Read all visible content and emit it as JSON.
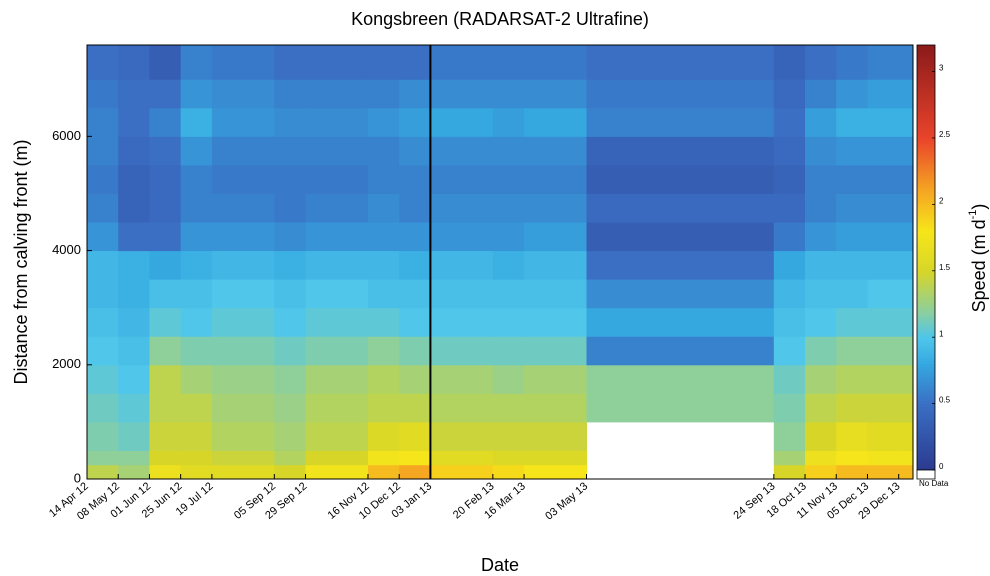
{
  "chart_data": {
    "type": "heatmap",
    "title": "Kongsbreen (RADARSAT-2 Ultrafine)",
    "x_label": "Date",
    "y_label": "Distance from calving front (m)",
    "colorbar_label": [
      "Speed (m d",
      "-1",
      ")"
    ],
    "no_data_label": "No Data",
    "x": [
      "14 Apr 12",
      "08 May 12",
      "01 Jun 12",
      "25 Jun 12",
      "19 Jul 12",
      "05 Sep 12",
      "29 Sep 12",
      "16 Nov 12",
      "10 Dec 12",
      "03 Jan 13",
      "20 Feb 13",
      "16 Mar 13",
      "03 May 13",
      "24 Sep 13",
      "18 Oct 13",
      "11 Nov 13",
      "05 Dec 13",
      "29 Dec 13"
    ],
    "xlim": [
      "14 Apr 12",
      "09 Jan 14"
    ],
    "vline": "03 Jan 13",
    "y_bins": [
      0,
      250,
      500,
      1000,
      1500,
      2000,
      2500,
      3000,
      3500,
      4000,
      4500,
      5000,
      5500,
      6000,
      6500,
      7000,
      7600
    ],
    "ylim": [
      0,
      7600
    ],
    "yticks": [
      0,
      2000,
      4000,
      6000
    ],
    "clim": [
      0,
      3.2
    ],
    "cticks": [
      0,
      0.5,
      1,
      1.5,
      2,
      2.5,
      3
    ],
    "colormap": [
      [
        0,
        "#2b3a8f"
      ],
      [
        0.5,
        "#3a6fc4"
      ],
      [
        0.8,
        "#35a8e0"
      ],
      [
        1.0,
        "#4fc6ea"
      ],
      [
        1.2,
        "#8ecf9a"
      ],
      [
        1.5,
        "#d7d628"
      ],
      [
        1.8,
        "#f6e51a"
      ],
      [
        2.1,
        "#f6a722"
      ],
      [
        2.5,
        "#e9442b"
      ],
      [
        3.2,
        "#8b1a1a"
      ]
    ],
    "values": [
      [
        1.4,
        1.2,
        1.15,
        1.1,
        1.05,
        1.0,
        0.95,
        0.9,
        0.9,
        0.7,
        0.6,
        0.55,
        0.6,
        0.6,
        0.55,
        0.5
      ],
      [
        1.3,
        1.2,
        1.1,
        1.05,
        1.0,
        0.95,
        0.9,
        0.85,
        0.85,
        0.5,
        0.4,
        0.4,
        0.45,
        0.5,
        0.5,
        0.45
      ],
      [
        1.7,
        1.5,
        1.45,
        1.4,
        1.4,
        1.2,
        1.05,
        0.95,
        0.8,
        0.5,
        0.45,
        0.45,
        0.5,
        0.6,
        0.5,
        0.35
      ],
      [
        1.6,
        1.5,
        1.45,
        1.4,
        1.3,
        1.15,
        1.0,
        0.95,
        0.85,
        0.7,
        0.6,
        0.6,
        0.7,
        0.85,
        0.7,
        0.6
      ],
      [
        1.6,
        1.45,
        1.35,
        1.3,
        1.25,
        1.15,
        1.05,
        1.0,
        0.9,
        0.7,
        0.6,
        0.55,
        0.6,
        0.7,
        0.65,
        0.55
      ],
      [
        1.5,
        1.35,
        1.3,
        1.25,
        1.2,
        1.1,
        1.0,
        0.95,
        0.85,
        0.65,
        0.55,
        0.55,
        0.6,
        0.65,
        0.6,
        0.5
      ],
      [
        1.75,
        1.5,
        1.4,
        1.35,
        1.3,
        1.15,
        1.05,
        1.0,
        0.9,
        0.7,
        0.6,
        0.55,
        0.6,
        0.65,
        0.6,
        0.5
      ],
      [
        2.0,
        1.75,
        1.55,
        1.4,
        1.35,
        1.2,
        1.05,
        0.95,
        0.9,
        0.7,
        0.65,
        0.6,
        0.6,
        0.7,
        0.6,
        0.5
      ],
      [
        2.1,
        1.8,
        1.6,
        1.4,
        1.3,
        1.15,
        1.0,
        0.95,
        0.85,
        0.7,
        0.6,
        0.6,
        0.65,
        0.75,
        0.65,
        0.5
      ],
      [
        1.9,
        1.6,
        1.45,
        1.35,
        1.3,
        1.1,
        1.0,
        0.95,
        0.9,
        0.7,
        0.65,
        0.6,
        0.65,
        0.8,
        0.65,
        0.55
      ],
      [
        1.85,
        1.55,
        1.45,
        1.35,
        1.25,
        1.1,
        1.0,
        0.95,
        0.85,
        0.7,
        0.65,
        0.6,
        0.65,
        0.75,
        0.65,
        0.55
      ],
      [
        1.8,
        1.55,
        1.45,
        1.35,
        1.3,
        1.1,
        1.0,
        0.95,
        0.9,
        0.75,
        0.65,
        0.6,
        0.65,
        0.8,
        0.65,
        0.55
      ],
      [
        null,
        null,
        null,
        1.2,
        1.2,
        0.6,
        0.8,
        0.65,
        0.5,
        0.35,
        0.45,
        0.35,
        0.4,
        0.6,
        0.55,
        0.5
      ],
      [
        1.5,
        1.3,
        1.2,
        1.15,
        1.1,
        1.0,
        0.95,
        0.9,
        0.8,
        0.55,
        0.45,
        0.4,
        0.45,
        0.5,
        0.45,
        0.4
      ],
      [
        1.9,
        1.7,
        1.5,
        1.4,
        1.3,
        1.15,
        1.0,
        0.95,
        0.9,
        0.7,
        0.6,
        0.6,
        0.65,
        0.75,
        0.6,
        0.5
      ],
      [
        2.0,
        1.8,
        1.65,
        1.45,
        1.35,
        1.2,
        1.05,
        0.95,
        0.9,
        0.75,
        0.65,
        0.6,
        0.7,
        0.85,
        0.7,
        0.55
      ],
      [
        2.0,
        1.75,
        1.6,
        1.45,
        1.35,
        1.2,
        1.05,
        1.0,
        0.9,
        0.75,
        0.65,
        0.6,
        0.7,
        0.85,
        0.75,
        0.6
      ],
      [
        2.0,
        1.75,
        1.6,
        1.45,
        1.35,
        1.2,
        1.05,
        1.0,
        0.9,
        0.75,
        0.65,
        0.6,
        0.7,
        0.85,
        0.75,
        0.6
      ]
    ]
  }
}
